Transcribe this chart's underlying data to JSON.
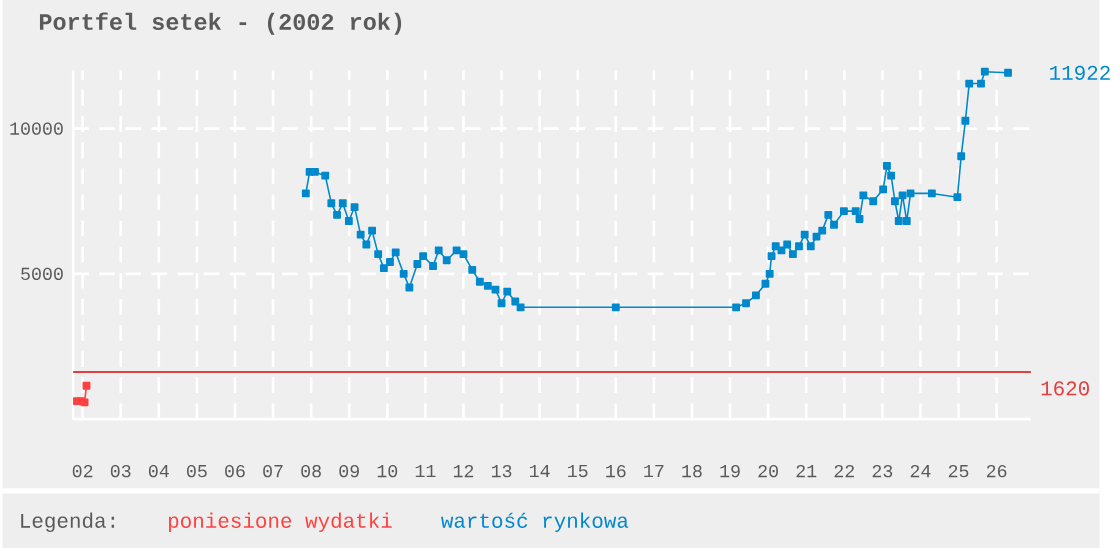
{
  "chart_data": {
    "type": "line",
    "title": "Portfel setek - (2002 rok)",
    "xlim": [
      1.75,
      26.9
    ],
    "ylim": [
      0,
      12000
    ],
    "xticks": [
      {
        "value": 2,
        "label": "02"
      },
      {
        "value": 3,
        "label": "03"
      },
      {
        "value": 4,
        "label": "04"
      },
      {
        "value": 5,
        "label": "05"
      },
      {
        "value": 6,
        "label": "06"
      },
      {
        "value": 7,
        "label": "07"
      },
      {
        "value": 8,
        "label": "08"
      },
      {
        "value": 9,
        "label": "09"
      },
      {
        "value": 10,
        "label": "10"
      },
      {
        "value": 11,
        "label": "11"
      },
      {
        "value": 12,
        "label": "12"
      },
      {
        "value": 13,
        "label": "13"
      },
      {
        "value": 14,
        "label": "14"
      },
      {
        "value": 15,
        "label": "15"
      },
      {
        "value": 16,
        "label": "16"
      },
      {
        "value": 17,
        "label": "17"
      },
      {
        "value": 18,
        "label": "18"
      },
      {
        "value": 19,
        "label": "19"
      },
      {
        "value": 20,
        "label": "20"
      },
      {
        "value": 21,
        "label": "21"
      },
      {
        "value": 22,
        "label": "22"
      },
      {
        "value": 23,
        "label": "23"
      },
      {
        "value": 24,
        "label": "24"
      },
      {
        "value": 25,
        "label": "25"
      },
      {
        "value": 26,
        "label": "26"
      }
    ],
    "yticks": [
      5000,
      10000
    ],
    "grid": true,
    "marker": "square",
    "legend": "bottom",
    "legend_title": "Legenda:",
    "series": [
      {
        "name": "poniesione wydatki",
        "color": "#ff4040",
        "x": [
          1.85,
          1.95,
          2.05,
          2.1
        ],
        "values": [
          620,
          620,
          580,
          1150
        ]
      },
      {
        "name": "wartość rynkowa",
        "color": "#0088cc",
        "x": [
          7.86,
          7.96,
          8.1,
          8.37,
          8.53,
          8.68,
          8.83,
          8.99,
          9.14,
          9.3,
          9.45,
          9.6,
          9.76,
          9.91,
          10.07,
          10.22,
          10.43,
          10.58,
          10.79,
          10.94,
          11.2,
          11.35,
          11.56,
          11.82,
          12.0,
          12.23,
          12.43,
          12.64,
          12.84,
          13.0,
          13.15,
          13.36,
          13.5,
          16.0,
          19.16,
          19.42,
          19.68,
          19.93,
          20.04,
          20.09,
          20.2,
          20.35,
          20.5,
          20.65,
          20.81,
          20.96,
          21.12,
          21.27,
          21.42,
          21.58,
          21.73,
          21.99,
          22.3,
          22.4,
          22.5,
          22.76,
          23.02,
          23.12,
          23.23,
          23.33,
          23.43,
          23.53,
          23.64,
          23.74,
          24.3,
          24.97,
          25.07,
          25.18,
          25.28,
          25.59,
          25.69,
          26.3
        ],
        "values": [
          7770,
          8510,
          8510,
          8380,
          7430,
          7030,
          7430,
          6820,
          7300,
          6350,
          6010,
          6490,
          5680,
          5200,
          5410,
          5740,
          5000,
          4530,
          5340,
          5610,
          5270,
          5810,
          5470,
          5810,
          5680,
          5140,
          4730,
          4590,
          4460,
          3990,
          4390,
          4050,
          3850,
          3850,
          3850,
          3990,
          4260,
          4660,
          5000,
          5610,
          5950,
          5810,
          6010,
          5680,
          5950,
          6350,
          5950,
          6280,
          6490,
          7030,
          6690,
          7160,
          7160,
          6890,
          7700,
          7500,
          7910,
          8720,
          8380,
          7500,
          6820,
          7700,
          6820,
          7770,
          7770,
          7640,
          9050,
          10270,
          11550,
          11550,
          11960,
          11922
        ]
      }
    ],
    "ref_lines": [
      {
        "axis": "y",
        "value": 1620,
        "label": "1620",
        "color": "#e04040"
      }
    ],
    "annotations": [
      {
        "text": "11922",
        "x": 26.3,
        "y": 11922
      }
    ]
  }
}
